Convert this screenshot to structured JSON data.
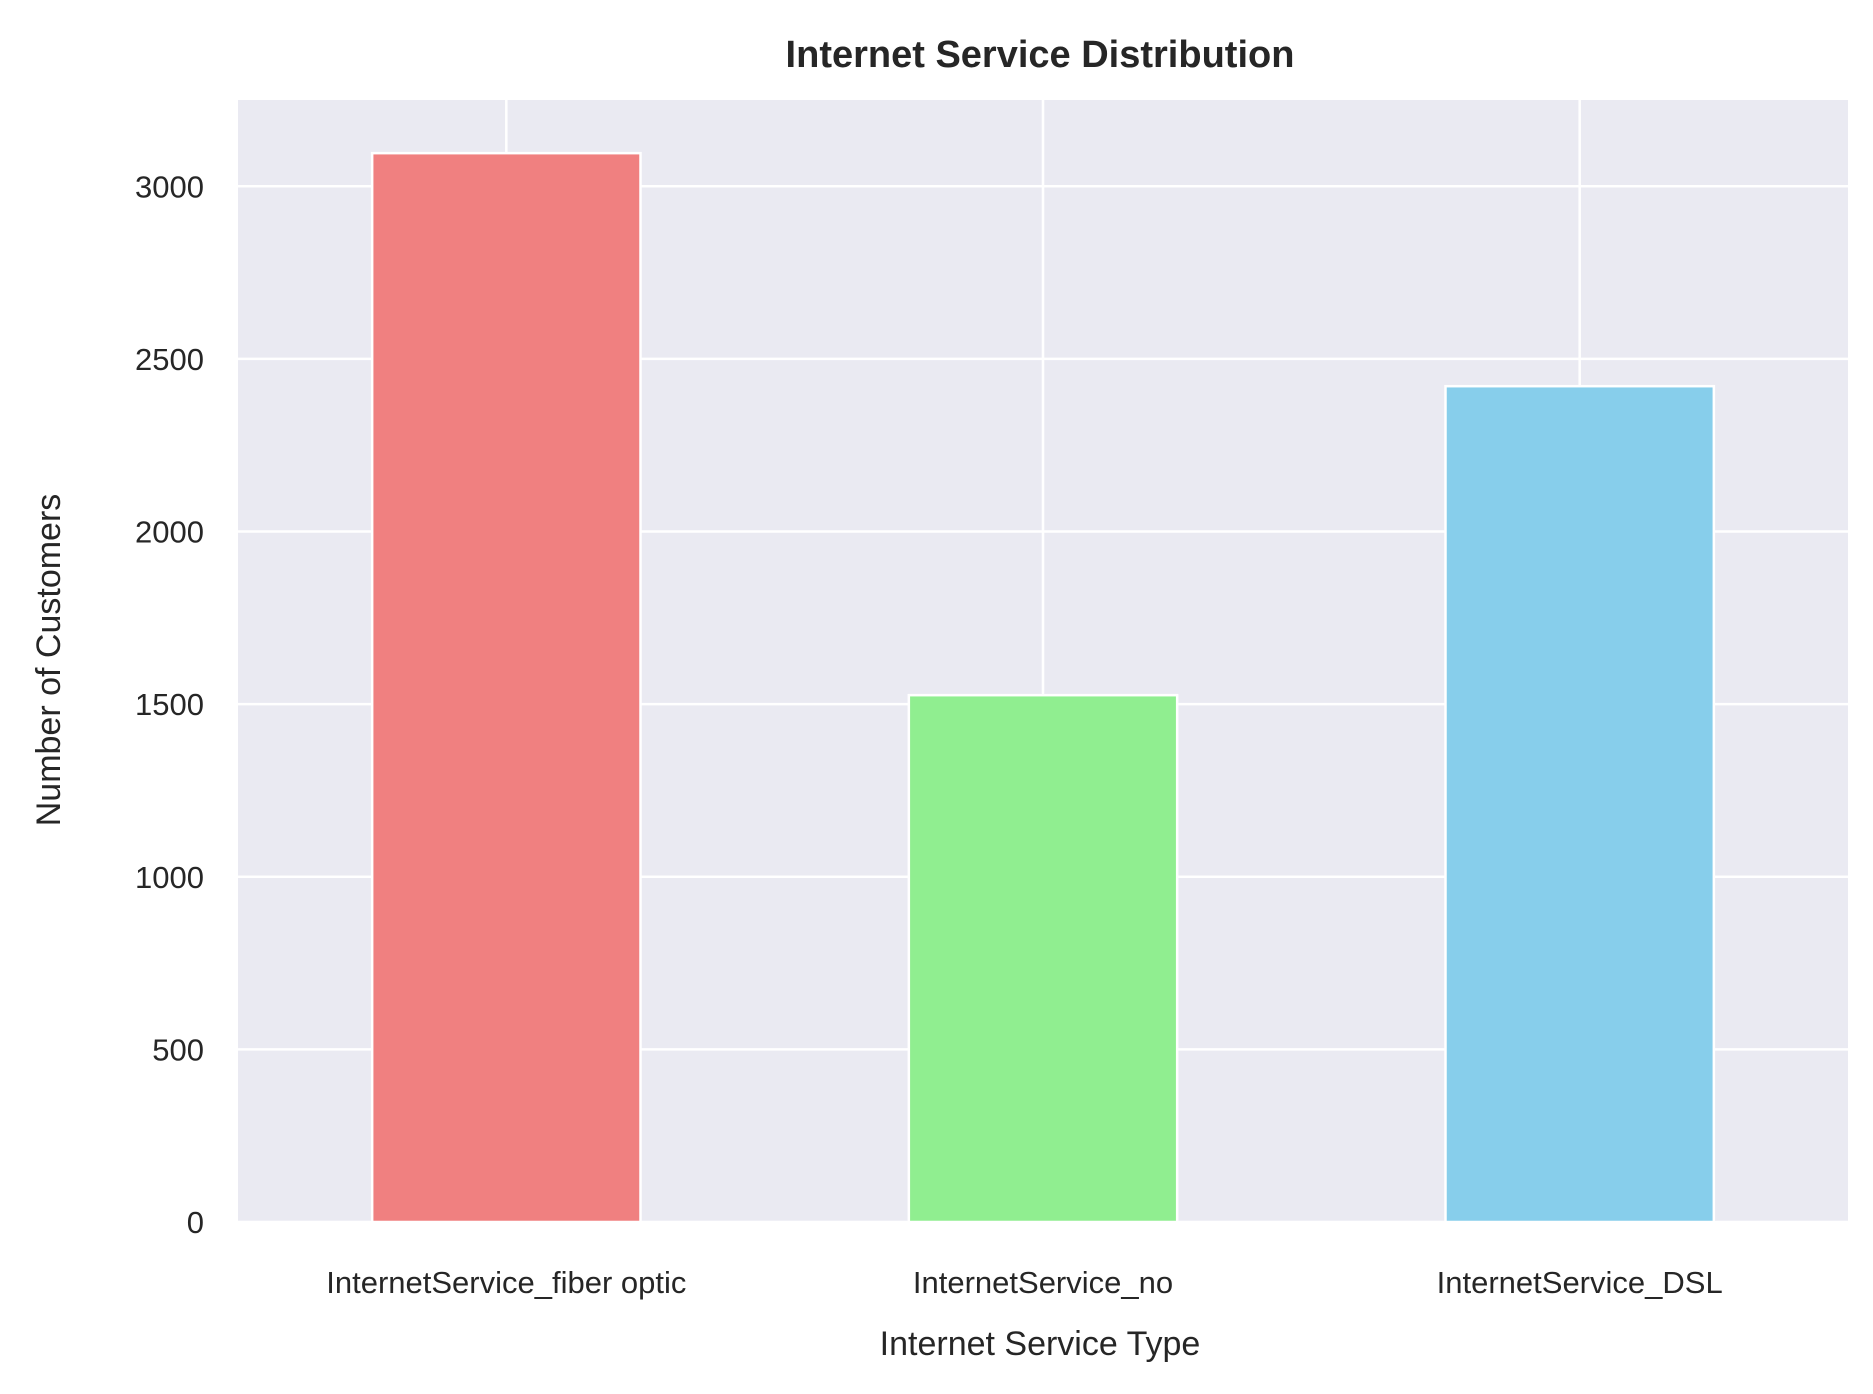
{
  "chart_data": {
    "type": "bar",
    "title": "Internet Service Distribution",
    "xlabel": "Internet Service Type",
    "ylabel": "Number of Customers",
    "categories": [
      "InternetService_fiber optic",
      "InternetService_no",
      "InternetService_DSL"
    ],
    "values": [
      3096,
      1526,
      2421
    ],
    "colors": [
      "#f08080",
      "#90ee90",
      "#87ceeb"
    ],
    "ylim": [
      0,
      3250
    ],
    "yticks": [
      0,
      500,
      1000,
      1500,
      2000,
      2500,
      3000
    ],
    "ytick_labels": [
      "0",
      "500",
      "1000",
      "1500",
      "2000",
      "2500",
      "3000"
    ],
    "grid": true,
    "background": "#eaeaf2",
    "gridline_color": "#ffffff"
  }
}
